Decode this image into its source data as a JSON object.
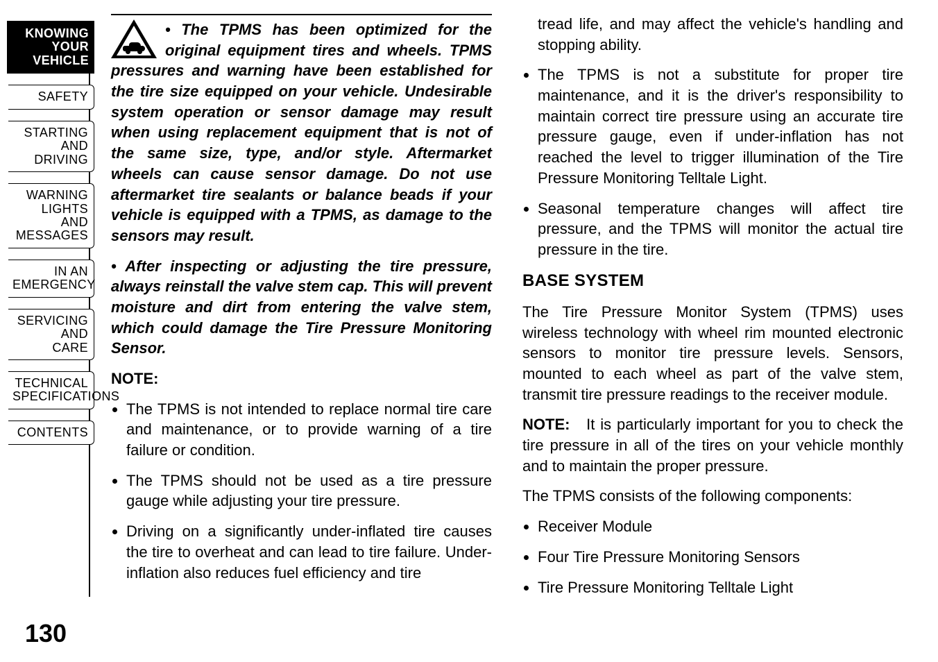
{
  "page_number": "130",
  "sidebar": {
    "active_bg": "#000000",
    "active_color": "#ffffff",
    "inactive_color": "#000000",
    "fontsize": 18,
    "tabs": [
      {
        "id": "knowing",
        "label": "KNOWING\nYOUR\nVEHICLE",
        "active": true
      },
      {
        "id": "safety",
        "label": "SAFETY",
        "active": false
      },
      {
        "id": "starting",
        "label": "STARTING\nAND\nDRIVING",
        "active": false
      },
      {
        "id": "warning",
        "label": "WARNING\nLIGHTS\nAND\nMESSAGES",
        "active": false
      },
      {
        "id": "emergency",
        "label": "IN AN\nEMERGENCY",
        "active": false
      },
      {
        "id": "servicing",
        "label": "SERVICING\nAND\nCARE",
        "active": false
      },
      {
        "id": "technical",
        "label": "TECHNICAL\nSPECIFICATIONS",
        "active": false
      },
      {
        "id": "contents",
        "label": "CONTENTS",
        "active": false
      }
    ]
  },
  "column_left": {
    "warning_paragraph_bold_italic": "•  The TPMS has been optimized for the original equipment tires and wheels. TPMS pressures and warning have been established for the tire size equipped on your vehicle. Undesirable system operation or sensor damage may result when using replacement equipment that is not of the same size, type, and/or style. Aftermarket wheels can cause sensor damage. Do not use aftermarket tire sealants or balance beads if your vehicle is equipped with a TPMS, as damage to the sensors may result.",
    "warning_paragraph2_bold_italic": "•  After inspecting or adjusting the tire pressure, always reinstall the valve stem cap. This will prevent moisture and dirt from entering the valve stem, which could damage the Tire Pressure Monitoring Sensor.",
    "note_heading": "NOTE:",
    "bullets": [
      "The TPMS is not intended to replace normal tire care and maintenance, or to provide warning of a tire failure or condition.",
      "The TPMS should not be used as a tire pressure gauge while adjusting your tire pressure.",
      "Driving on a significantly under-inflated tire causes the tire to overheat and can lead to tire failure. Under-inflation also reduces fuel efficiency and tire"
    ]
  },
  "column_right": {
    "cont_text": "tread life, and may affect the vehicle's handling and stopping ability.",
    "bullets_top": [
      "The TPMS is not a substitute for proper tire maintenance, and it is the driver's responsibility to maintain correct tire pressure using an accurate tire pressure gauge, even if under-inflation has not reached the level to trigger illumination of the Tire Pressure Monitoring Telltale Light.",
      "Seasonal temperature changes will affect tire pressure, and the TPMS will monitor the actual tire pressure in the tire."
    ],
    "section_heading": "BASE SYSTEM",
    "section_body": "The Tire Pressure Monitor System (TPMS) uses wireless technology with wheel rim mounted electronic sensors to monitor tire pressure levels. Sensors, mounted to each wheel as part of the valve stem, transmit tire pressure readings to the receiver module.",
    "note_label": "NOTE:",
    "note_body": "It is particularly important for you to check the tire pressure in all of the tires on your vehicle monthly and to maintain the proper pressure.",
    "components_intro": "The TPMS consists of the following components:",
    "components": [
      "Receiver Module",
      "Four Tire Pressure Monitoring Sensors",
      "Tire Pressure Monitoring Telltale Light"
    ]
  },
  "style": {
    "body_fontsize": 22,
    "heading_fontsize": 24,
    "page_bg": "#ffffff",
    "text_color": "#000000"
  }
}
